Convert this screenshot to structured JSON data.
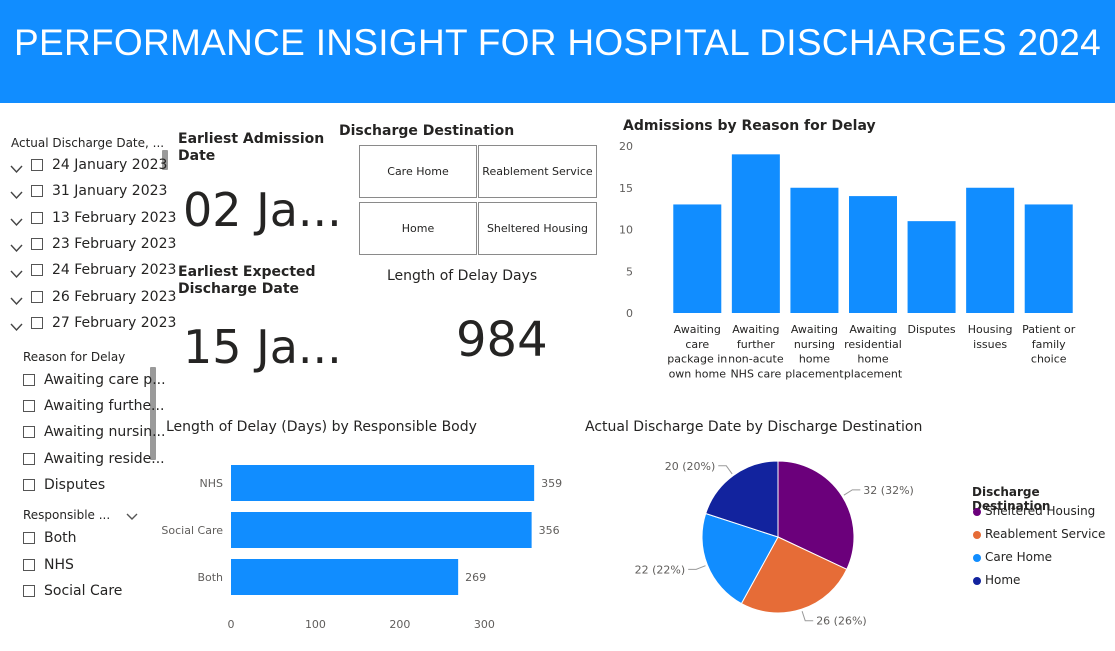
{
  "header": {
    "title": "PERFORMANCE INSIGHT FOR HOSPITAL DISCHARGES 2024"
  },
  "date_slicer": {
    "title": "Actual Discharge Date, ...",
    "items": [
      "24 January 2023",
      "31 January 2023",
      "13 February 2023",
      "23 February 2023",
      "24 February 2023",
      "26 February 2023",
      "27 February 2023"
    ]
  },
  "reason_slicer": {
    "title": "Reason for Delay",
    "items": [
      "Awaiting care p...",
      "Awaiting furthe...",
      "Awaiting nursin...",
      "Awaiting reside...",
      "Disputes"
    ]
  },
  "body_slicer": {
    "title": "Responsible ...",
    "items": [
      "Both",
      "NHS",
      "Social Care"
    ]
  },
  "kpi_admission": {
    "title": "Earliest Admission Date",
    "value": "02 Ja..."
  },
  "kpi_discharge": {
    "title": "Earliest Expected Discharge Date",
    "value": "15 Ja..."
  },
  "destination_tiles": {
    "title": "Discharge Destination",
    "tiles": [
      "Care Home",
      "Reablement Service",
      "Home",
      "Sheltered Housing"
    ]
  },
  "delay_card": {
    "title": "Length of Delay Days",
    "value": "984"
  },
  "colors": {
    "primary": "#118DFF",
    "sheltered": "#6B007B",
    "reablement": "#E66C37",
    "care_home": "#118DFF",
    "home": "#12239E"
  },
  "chart_data": [
    {
      "type": "bar",
      "title": "Admissions by Reason for Delay",
      "categories": [
        "Awaiting care package in own home",
        "Awaiting further non-acute NHS care",
        "Awaiting nursing home placement",
        "Awaiting residential home placement",
        "Disputes",
        "Housing issues",
        "Patient or family choice"
      ],
      "category_lines": [
        [
          "Awaiting",
          "care",
          "package in",
          "own home"
        ],
        [
          "Awaiting",
          "further",
          "non-acute",
          "NHS care"
        ],
        [
          "Awaiting",
          "nursing",
          "home",
          "placement"
        ],
        [
          "Awaiting",
          "residential",
          "home",
          "placement"
        ],
        [
          "Disputes"
        ],
        [
          "Housing",
          "issues"
        ],
        [
          "Patient or",
          "family",
          "choice"
        ]
      ],
      "values": [
        13,
        19,
        15,
        14,
        11,
        15,
        13
      ],
      "ylim": [
        0,
        20
      ],
      "yticks": [
        0,
        5,
        10,
        15,
        20
      ],
      "grid": false
    },
    {
      "type": "bar",
      "orientation": "horizontal",
      "title": "Length of Delay (Days) by Responsible Body",
      "categories": [
        "NHS",
        "Social Care",
        "Both"
      ],
      "values": [
        359,
        356,
        269
      ],
      "xlim": [
        0,
        360
      ],
      "xticks": [
        0,
        100,
        200,
        300
      ],
      "grid": false
    },
    {
      "type": "pie",
      "title": "Actual Discharge Date by Discharge Destination",
      "legend_title": "Discharge Destination",
      "legend_position": "right",
      "slices": [
        {
          "label": "Sheltered Housing",
          "value": 32,
          "data_label": "32 (32%)"
        },
        {
          "label": "Reablement Service",
          "value": 26,
          "data_label": "26 (26%)"
        },
        {
          "label": "Care Home",
          "value": 22,
          "data_label": "22 (22%)"
        },
        {
          "label": "Home",
          "value": 20,
          "data_label": "20 (20%)"
        }
      ]
    }
  ]
}
